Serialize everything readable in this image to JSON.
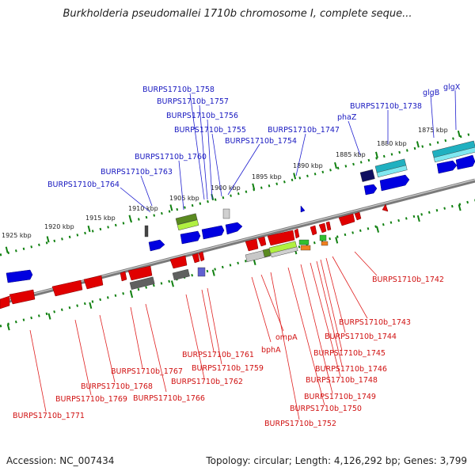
{
  "title": "Burkholderia pseudomallei 1710b chromosome I, complete seque...",
  "footer": {
    "accession": "Accession: NC_007434",
    "summary": "Topology: circular; Length: 4,126,292 bp; Genes: 3,799"
  },
  "scale_ticks": [
    "1925 kbp",
    "1920 kbp",
    "1915 kbp",
    "1910 kbp",
    "1905 kbp",
    "1900 kbp",
    "1895 kbp",
    "1890 kbp",
    "1885 kbp",
    "1880 kbp",
    "1875 kbp"
  ],
  "genes_top": [
    "BURPS1710b_1764",
    "BURPS1710b_1763",
    "BURPS1710b_1760",
    "BURPS1710b_1758",
    "BURPS1710b_1757",
    "BURPS1710b_1756",
    "BURPS1710b_1755",
    "BURPS1710b_1754",
    "BURPS1710b_1747",
    "phaZ",
    "BURPS1710b_1738",
    "glgB",
    "glgX"
  ],
  "genes_bottom": [
    "BURPS1710b_1771",
    "BURPS1710b_1769",
    "BURPS1710b_1768",
    "BURPS1710b_1767",
    "BURPS1710b_1766",
    "BURPS1710b_1762",
    "BURPS1710b_1761",
    "BURPS1710b_1759",
    "bphA",
    "ompA",
    "BURPS1710b_1752",
    "BURPS1710b_1750",
    "BURPS1710b_1749",
    "BURPS1710b_1748",
    "BURPS1710b_1746",
    "BURPS1710b_1745",
    "BURPS1710b_1744",
    "BURPS1710b_1743",
    "BURPS1710b_1742"
  ],
  "colors": {
    "forward": "#0000e0",
    "reverse": "#e00000",
    "backbone": "#808080",
    "ticks": "#108010"
  }
}
